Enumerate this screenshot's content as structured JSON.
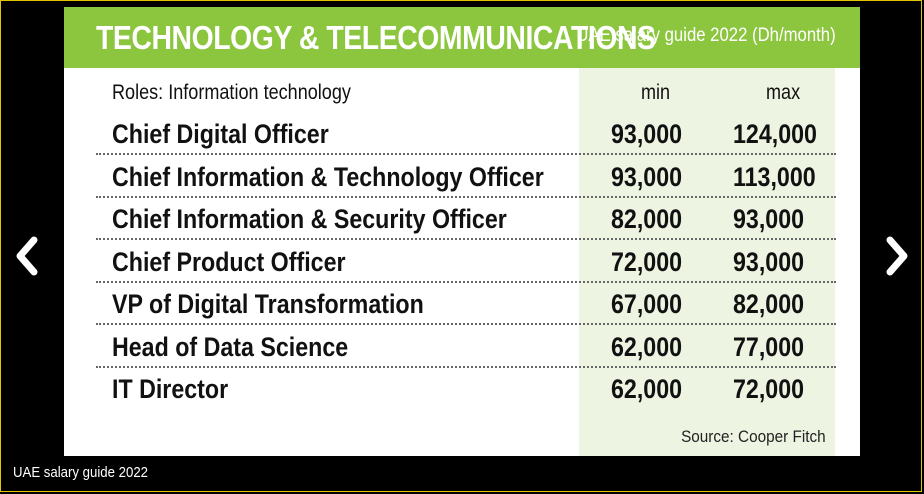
{
  "slide": {
    "title": "TECHNOLOGY & TELECOMMUNICATIONS",
    "subtitle": "UAE salary guide 2022 (Dh/month)",
    "header": {
      "roles": "Roles: Information technology",
      "min": "min",
      "max": "max"
    },
    "rows": [
      {
        "role": "Chief Digital Officer",
        "min": "93,000",
        "max": "124,000"
      },
      {
        "role": "Chief Information & Technology Officer",
        "min": "93,000",
        "max": "113,000"
      },
      {
        "role": "Chief Information & Security Officer",
        "min": "82,000",
        "max": "93,000"
      },
      {
        "role": "Chief Product Officer",
        "min": "72,000",
        "max": "93,000"
      },
      {
        "role": "VP of Digital Transformation",
        "min": "67,000",
        "max": "82,000"
      },
      {
        "role": "Head of Data Science",
        "min": "62,000",
        "max": "77,000"
      },
      {
        "role": "IT Director",
        "min": "62,000",
        "max": "72,000"
      }
    ],
    "source": "Source: Cooper Fitch"
  },
  "gallery": {
    "caption": "UAE salary guide 2022",
    "prev_icon": "chevron-left-icon",
    "next_icon": "chevron-right-icon"
  },
  "colors": {
    "header_bg": "#8cc63f",
    "column_bg": "#eef4e2",
    "frame_border": "#e2c400"
  }
}
